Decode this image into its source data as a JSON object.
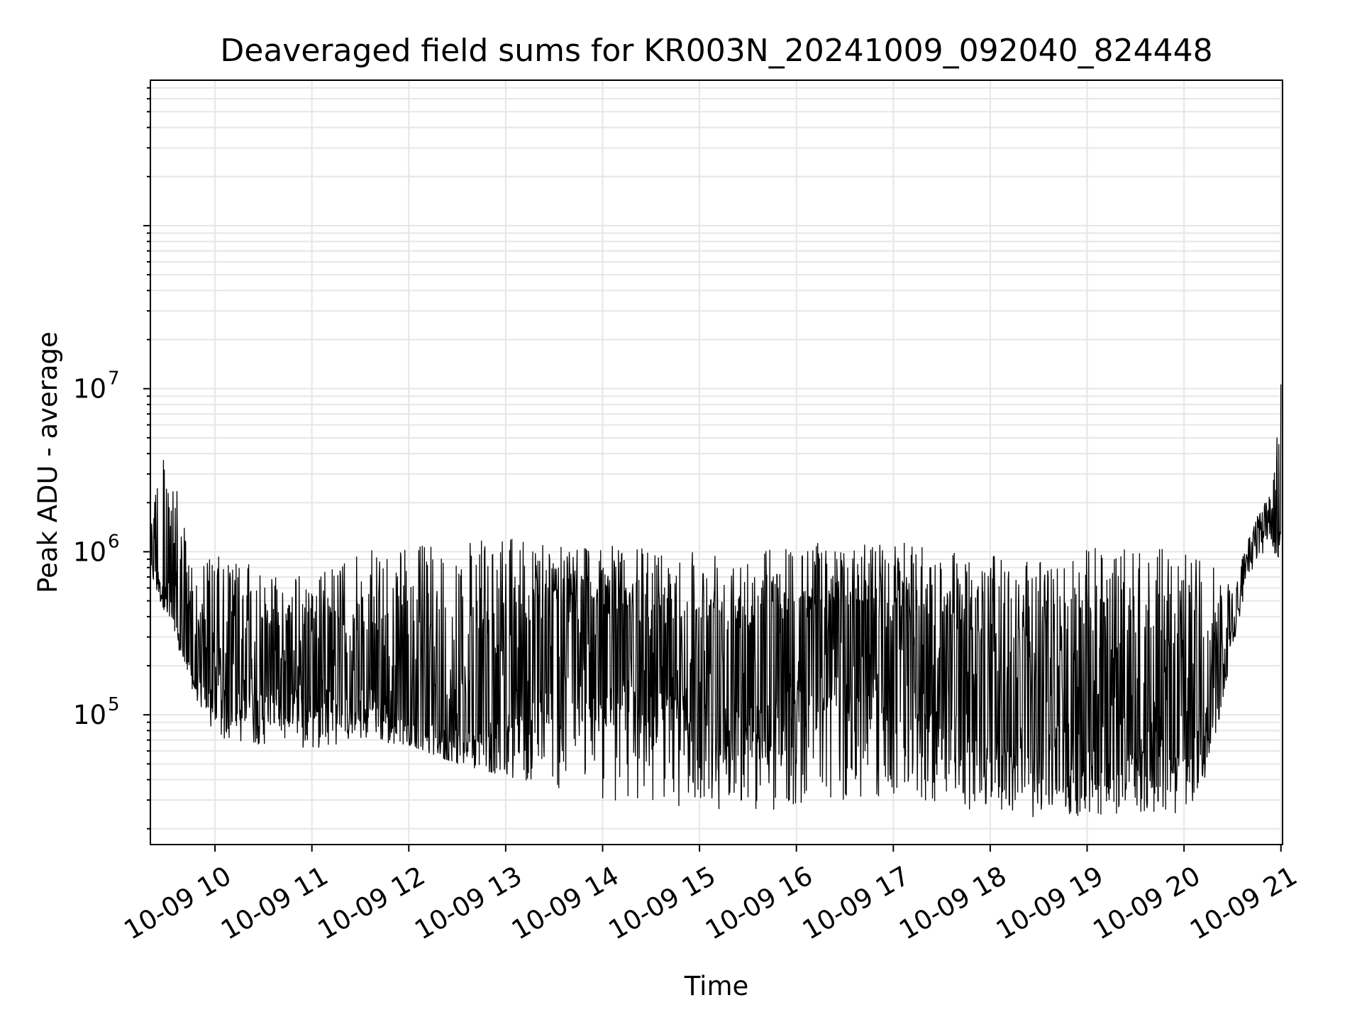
{
  "chart_data": {
    "type": "line",
    "title": "Deaveraged field sums for KR003N_20241009_092040_824448",
    "xlabel": "Time",
    "ylabel": "Peak ADU - average",
    "xscale": "time",
    "yscale": "log",
    "xlim": [
      "2024-10-09 09:20",
      "2024-10-09 21:01"
    ],
    "ylim": [
      16000,
      780000000
    ],
    "grid": true,
    "legend": "none",
    "line_color": "#000000",
    "grid_color": "#e6e6e6",
    "x_ticks": [
      "10-09 10",
      "10-09 11",
      "10-09 12",
      "10-09 13",
      "10-09 14",
      "10-09 15",
      "10-09 16",
      "10-09 17",
      "10-09 18",
      "10-09 19",
      "10-09 20",
      "10-09 21"
    ],
    "y_ticks": [
      {
        "base": "10",
        "exp": "5",
        "value": 100000
      },
      {
        "base": "10",
        "exp": "6",
        "value": 1000000
      },
      {
        "base": "10",
        "exp": "7",
        "value": 10000000
      }
    ],
    "series": [
      {
        "x": [
          "2024-10-09 09:20",
          "2024-10-09 09:30",
          "2024-10-09 09:45",
          "2024-10-09 10:00",
          "2024-10-09 10:30",
          "2024-10-09 11:00",
          "2024-10-09 11:30",
          "2024-10-09 12:00",
          "2024-10-09 12:30",
          "2024-10-09 13:00",
          "2024-10-09 13:30",
          "2024-10-09 14:00",
          "2024-10-09 14:30",
          "2024-10-09 15:00",
          "2024-10-09 15:30",
          "2024-10-09 16:00",
          "2024-10-09 16:30",
          "2024-10-09 17:00",
          "2024-10-09 17:30",
          "2024-10-09 18:00",
          "2024-10-09 18:30",
          "2024-10-09 19:00",
          "2024-10-09 19:30",
          "2024-10-09 20:00",
          "2024-10-09 20:15",
          "2024-10-09 20:30",
          "2024-10-09 20:45",
          "2024-10-09 20:55",
          "2024-10-09 21:00"
        ],
        "high": [
          2300000,
          4900000,
          900000,
          950000,
          800000,
          700000,
          1000000,
          1100000,
          1150000,
          1200000,
          1200000,
          1100000,
          1050000,
          1100000,
          1050000,
          1150000,
          1150000,
          1150000,
          1100000,
          950000,
          900000,
          1050000,
          1100000,
          1000000,
          900000,
          600000,
          1700000,
          2500000,
          15000000
        ],
        "low": [
          700000,
          400000,
          150000,
          70000,
          65000,
          60000,
          70000,
          65000,
          50000,
          42000,
          35000,
          30000,
          28000,
          27000,
          24000,
          28000,
          30000,
          30000,
          28000,
          25000,
          23000,
          24000,
          24000,
          25000,
          40000,
          250000,
          900000,
          1000000,
          900000
        ],
        "typical": [
          1000000,
          600000,
          200000,
          150000,
          180000,
          170000,
          150000,
          110000,
          90000,
          100000,
          300000,
          250000,
          200000,
          180000,
          170000,
          200000,
          250000,
          250000,
          180000,
          100000,
          80000,
          70000,
          80000,
          70000,
          100000,
          400000,
          1300000,
          1400000,
          1500000
        ]
      }
    ]
  }
}
